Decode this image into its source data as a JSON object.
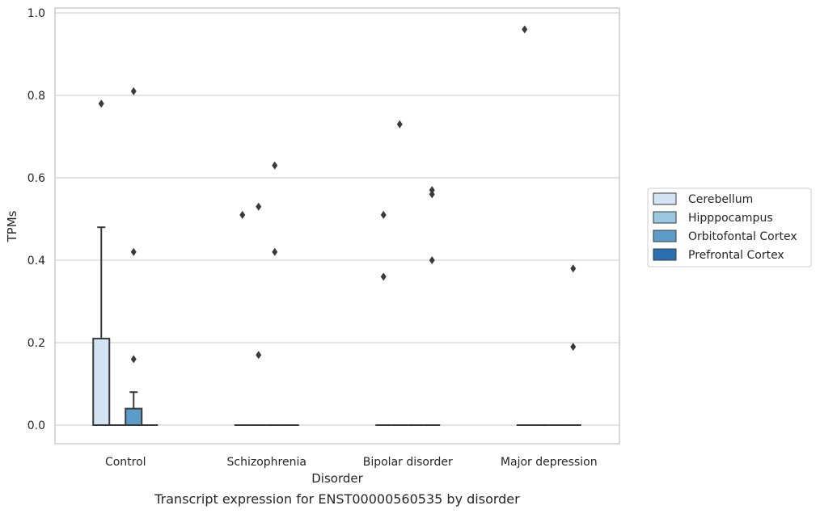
{
  "chart_data": {
    "type": "box",
    "xlabel": "Disorder",
    "ylabel": "TPMs",
    "caption": "Transcript expression for ENST00000560535 by disorder",
    "ylim": [
      -0.045,
      1.01
    ],
    "yticks": [
      "0.0",
      "0.2",
      "0.4",
      "0.6",
      "0.8",
      "1.0"
    ],
    "grid": true,
    "legend_position": "right",
    "categories": [
      "Control",
      "Schizophrenia",
      "Bipolar disorder",
      "Major depression"
    ],
    "series": [
      {
        "name": "Cerebellum",
        "color": "#d2e3f3"
      },
      {
        "name": "Hipppocampus",
        "color": "#9ac8e0"
      },
      {
        "name": "Orbitofontal Cortex",
        "color": "#5b9dc8"
      },
      {
        "name": "Prefrontal Cortex",
        "color": "#2a6fb0"
      }
    ],
    "boxes": [
      {
        "category": 0,
        "series": 0,
        "q1": 0,
        "median": 0,
        "q3": 0.21,
        "whisker_low": 0,
        "whisker_high": 0.48
      },
      {
        "category": 0,
        "series": 1,
        "q1": 0,
        "median": 0,
        "q3": 0,
        "whisker_low": 0,
        "whisker_high": 0
      },
      {
        "category": 0,
        "series": 2,
        "q1": 0,
        "median": 0,
        "q3": 0.04,
        "whisker_low": 0,
        "whisker_high": 0.08
      },
      {
        "category": 0,
        "series": 3,
        "q1": 0,
        "median": 0,
        "q3": 0,
        "whisker_low": 0,
        "whisker_high": 0
      },
      {
        "category": 1,
        "series": 0,
        "q1": 0,
        "median": 0,
        "q3": 0,
        "whisker_low": 0,
        "whisker_high": 0
      },
      {
        "category": 1,
        "series": 1,
        "q1": 0,
        "median": 0,
        "q3": 0,
        "whisker_low": 0,
        "whisker_high": 0
      },
      {
        "category": 1,
        "series": 2,
        "q1": 0,
        "median": 0,
        "q3": 0,
        "whisker_low": 0,
        "whisker_high": 0
      },
      {
        "category": 1,
        "series": 3,
        "q1": 0,
        "median": 0,
        "q3": 0,
        "whisker_low": 0,
        "whisker_high": 0
      },
      {
        "category": 2,
        "series": 0,
        "q1": 0,
        "median": 0,
        "q3": 0,
        "whisker_low": 0,
        "whisker_high": 0
      },
      {
        "category": 2,
        "series": 1,
        "q1": 0,
        "median": 0,
        "q3": 0,
        "whisker_low": 0,
        "whisker_high": 0
      },
      {
        "category": 2,
        "series": 2,
        "q1": 0,
        "median": 0,
        "q3": 0,
        "whisker_low": 0,
        "whisker_high": 0
      },
      {
        "category": 2,
        "series": 3,
        "q1": 0,
        "median": 0,
        "q3": 0,
        "whisker_low": 0,
        "whisker_high": 0
      },
      {
        "category": 3,
        "series": 0,
        "q1": 0,
        "median": 0,
        "q3": 0,
        "whisker_low": 0,
        "whisker_high": 0
      },
      {
        "category": 3,
        "series": 1,
        "q1": 0,
        "median": 0,
        "q3": 0,
        "whisker_low": 0,
        "whisker_high": 0
      },
      {
        "category": 3,
        "series": 2,
        "q1": 0,
        "median": 0,
        "q3": 0,
        "whisker_low": 0,
        "whisker_high": 0
      },
      {
        "category": 3,
        "series": 3,
        "q1": 0,
        "median": 0,
        "q3": 0,
        "whisker_low": 0,
        "whisker_high": 0
      }
    ],
    "outliers": [
      {
        "category": 0,
        "series": 0,
        "value": 0.78
      },
      {
        "category": 0,
        "series": 2,
        "value": 0.81
      },
      {
        "category": 0,
        "series": 2,
        "value": 0.42
      },
      {
        "category": 0,
        "series": 2,
        "value": 0.16
      },
      {
        "category": 1,
        "series": 0,
        "value": 0.51
      },
      {
        "category": 1,
        "series": 1,
        "value": 0.53
      },
      {
        "category": 1,
        "series": 1,
        "value": 0.17
      },
      {
        "category": 1,
        "series": 2,
        "value": 0.63
      },
      {
        "category": 1,
        "series": 2,
        "value": 0.42
      },
      {
        "category": 2,
        "series": 0,
        "value": 0.51
      },
      {
        "category": 2,
        "series": 0,
        "value": 0.36
      },
      {
        "category": 2,
        "series": 1,
        "value": 0.73
      },
      {
        "category": 2,
        "series": 3,
        "value": 0.57
      },
      {
        "category": 2,
        "series": 3,
        "value": 0.56
      },
      {
        "category": 2,
        "series": 3,
        "value": 0.4
      },
      {
        "category": 3,
        "series": 0,
        "value": 0.96
      },
      {
        "category": 3,
        "series": 3,
        "value": 0.38
      },
      {
        "category": 3,
        "series": 3,
        "value": 0.19
      }
    ]
  }
}
